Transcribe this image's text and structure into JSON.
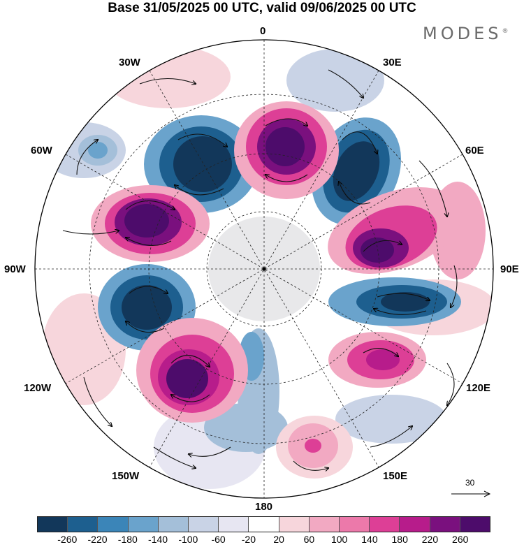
{
  "title": "Base 31/05/2025 00 UTC, valid 09/06/2025 00 UTC",
  "brand": "MODES",
  "brand_mark": "®",
  "longitude_labels": {
    "n0": "0",
    "n30e": "30E",
    "n60e": "60E",
    "n90e": "90E",
    "n120e": "120E",
    "n150e": "150E",
    "n180": "180",
    "n150w": "150W",
    "n120w": "120W",
    "n90w": "90W",
    "n60w": "60W",
    "n30w": "30W"
  },
  "vector_key": {
    "value": "30"
  },
  "colorbar": {
    "colors": [
      "#12375a",
      "#1d5f8f",
      "#3b85b8",
      "#6aa3cc",
      "#a4bfd9",
      "#c9d3e6",
      "#e7e6f2",
      "#ffffff",
      "#f7d6dc",
      "#f2a9c2",
      "#ec79aa",
      "#dd3f96",
      "#b71c8b",
      "#7a107e",
      "#4d0c6b"
    ],
    "labels": [
      "-260",
      "-220",
      "-180",
      "-140",
      "-100",
      "-60",
      "-20",
      "20",
      "60",
      "100",
      "140",
      "180",
      "220",
      "260"
    ]
  },
  "map_colors": {
    "ocean_disc": "#ffffff",
    "land_fill": "#e8e8ea",
    "grid_line": "#222222"
  }
}
